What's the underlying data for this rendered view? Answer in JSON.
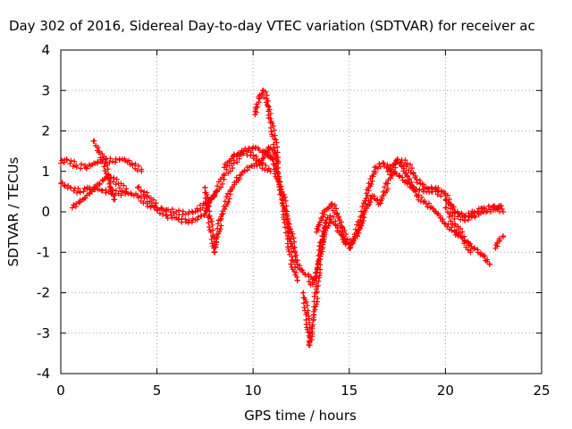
{
  "chart_data": {
    "type": "scatter",
    "title": "Day 302 of 2016, Sidereal Day-to-day VTEC variation (SDTVAR) for receiver ac",
    "xlabel": "GPS time / hours",
    "ylabel": "SDTVAR / TECUs",
    "xlim": [
      0,
      25
    ],
    "ylim": [
      -4,
      4
    ],
    "x_ticks": [
      "0",
      "5",
      "10",
      "15",
      "20",
      "25"
    ],
    "y_ticks": [
      "4",
      "3",
      "2",
      "1",
      "0",
      "-1",
      "-2",
      "-3",
      "-4"
    ],
    "grid": true,
    "marker": "+",
    "color": "#ff0000",
    "series": [
      {
        "x": [
          0.0,
          0.5,
          1.0,
          1.5,
          2.0,
          2.5,
          3.0,
          3.5,
          4.0,
          4.5,
          5.0,
          5.5,
          6.0,
          6.5,
          7.0,
          7.5,
          8.0,
          8.5,
          9.0,
          9.5,
          10.0,
          10.5,
          11.0
        ],
        "values": [
          0.7,
          0.6,
          0.5,
          0.6,
          0.55,
          0.5,
          0.45,
          0.45,
          0.4,
          0.2,
          0.1,
          0.05,
          0.0,
          -0.05,
          0.0,
          0.2,
          0.4,
          0.9,
          1.2,
          1.5,
          1.6,
          1.5,
          1.3
        ]
      },
      {
        "x": [
          11.0,
          11.5,
          12.0,
          12.3,
          12.6,
          12.9,
          13.1,
          13.3,
          13.6,
          14.0,
          14.4,
          14.8,
          15.2,
          15.6,
          16.0,
          16.4,
          16.8,
          17.2,
          17.6,
          18.0,
          18.5,
          19.0,
          19.5,
          20.0
        ],
        "values": [
          1.3,
          0.5,
          -0.6,
          -1.3,
          -1.5,
          -1.6,
          -1.8,
          -1.5,
          -0.7,
          -0.1,
          -0.4,
          -0.8,
          -0.7,
          -0.2,
          0.6,
          1.1,
          1.2,
          1.0,
          0.9,
          0.7,
          0.55,
          0.5,
          0.6,
          0.45
        ]
      },
      {
        "x": [
          20.0,
          20.5,
          21.0,
          21.5,
          22.0,
          22.5,
          22.9
        ],
        "values": [
          0.3,
          0.0,
          -0.2,
          -0.1,
          0.0,
          0.05,
          0.15
        ]
      },
      {
        "x": [
          0.0,
          0.3,
          0.8,
          1.3,
          1.8,
          2.2,
          2.7,
          3.2,
          3.7,
          4.2
        ],
        "values": [
          1.2,
          1.3,
          1.15,
          1.1,
          1.2,
          1.3,
          1.25,
          1.3,
          1.2,
          1.0
        ]
      },
      {
        "x": [
          0.6,
          1.0,
          1.5,
          2.0,
          2.5,
          3.0,
          3.4
        ],
        "values": [
          0.1,
          0.25,
          0.45,
          0.7,
          0.9,
          0.7,
          0.5
        ]
      },
      {
        "x": [
          1.7,
          2.0,
          2.3,
          2.6,
          2.8
        ],
        "values": [
          1.75,
          1.5,
          1.2,
          0.6,
          0.3
        ]
      },
      {
        "x": [
          4.0,
          4.5,
          5.0,
          5.5,
          6.0,
          6.5,
          7.0,
          7.5,
          7.8,
          8.1
        ],
        "values": [
          0.6,
          0.4,
          0.1,
          -0.1,
          -0.15,
          -0.25,
          -0.2,
          -0.05,
          0.3,
          0.5
        ]
      },
      {
        "x": [
          7.5,
          7.7,
          7.9,
          8.0,
          8.3,
          8.8,
          9.3,
          9.8,
          10.3,
          10.9
        ],
        "values": [
          0.6,
          -0.1,
          -0.6,
          -1.0,
          -0.2,
          0.5,
          0.9,
          1.1,
          1.2,
          1.0
        ]
      },
      {
        "x": [
          8.5,
          9.0,
          9.5,
          10.0,
          10.4,
          10.8,
          11.2,
          11.5,
          11.8,
          12.0,
          12.3
        ],
        "values": [
          1.1,
          1.4,
          1.5,
          1.4,
          1.2,
          1.6,
          1.2,
          0.3,
          -0.6,
          -1.2,
          -1.7
        ]
      },
      {
        "x": [
          10.1,
          10.3,
          10.5,
          10.7,
          10.9,
          11.1,
          11.3
        ],
        "values": [
          2.4,
          2.8,
          3.0,
          2.8,
          2.3,
          1.8,
          1.2
        ]
      },
      {
        "x": [
          12.6,
          12.8,
          12.95,
          13.1,
          13.3,
          13.5,
          13.8
        ],
        "values": [
          -2.0,
          -2.5,
          -3.3,
          -2.8,
          -2.0,
          -1.0,
          -0.2
        ]
      },
      {
        "x": [
          13.3,
          13.7,
          14.1,
          14.5,
          15.0,
          15.4,
          15.8,
          16.2,
          16.6,
          17.0,
          17.5,
          18.0,
          18.5,
          19.0,
          19.5,
          20.0,
          20.5,
          21.0,
          21.5,
          22.0,
          22.3
        ],
        "values": [
          -0.5,
          0.0,
          0.2,
          -0.2,
          -0.9,
          -0.6,
          0.0,
          0.4,
          0.2,
          0.7,
          1.3,
          0.9,
          0.4,
          0.2,
          0.0,
          -0.3,
          -0.5,
          -0.7,
          -0.9,
          -1.1,
          -1.3
        ]
      },
      {
        "x": [
          17.0,
          17.5,
          18.0,
          18.5,
          19.0,
          19.5,
          20.0,
          20.5,
          21.0,
          21.5,
          22.0,
          22.5,
          23.0
        ],
        "values": [
          1.0,
          1.3,
          1.2,
          0.8,
          0.6,
          0.5,
          0.4,
          0.0,
          -0.1,
          0.0,
          0.1,
          0.15,
          0.0
        ]
      },
      {
        "x": [
          20.0,
          20.5,
          21.0,
          21.3
        ],
        "values": [
          0.1,
          -0.3,
          -0.7,
          -1.0
        ]
      },
      {
        "x": [
          22.6,
          22.8,
          23.0
        ],
        "values": [
          -0.9,
          -0.7,
          -0.6
        ]
      }
    ]
  }
}
